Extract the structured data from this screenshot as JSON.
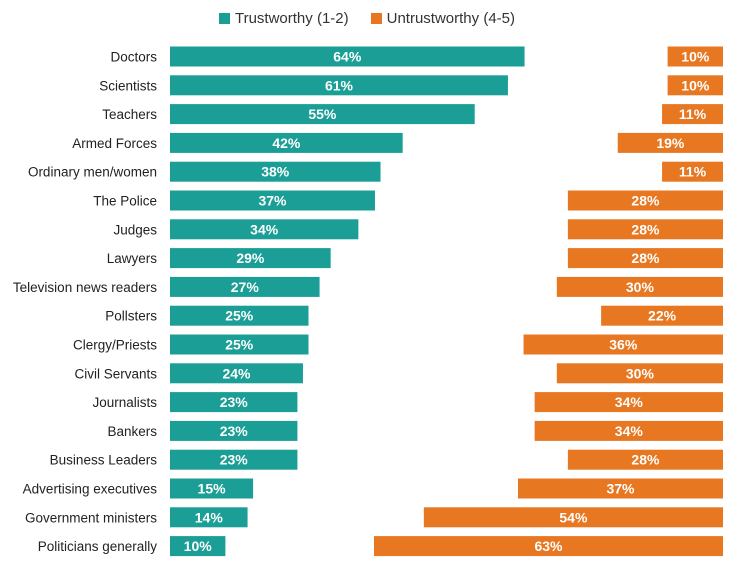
{
  "chart_data": {
    "type": "bar",
    "title": "",
    "xlabel": "",
    "ylabel": "",
    "categories": [
      "Doctors",
      "Scientists",
      "Teachers",
      "Armed Forces",
      "Ordinary men/women",
      "The Police",
      "Judges",
      "Lawyers",
      "Television news readers",
      "Pollsters",
      "Clergy/Priests",
      "Civil Servants",
      "Journalists",
      "Bankers",
      "Business Leaders",
      "Advertising executives",
      "Government ministers",
      "Politicians generally"
    ],
    "series": [
      {
        "name": "Trustworthy (1-2)",
        "color": "#1a9e96",
        "alignment": "left",
        "values": [
          64,
          61,
          55,
          42,
          38,
          37,
          34,
          29,
          27,
          25,
          25,
          24,
          23,
          23,
          23,
          15,
          14,
          10
        ],
        "labels": [
          "64%",
          "61%",
          "55%",
          "42%",
          "38%",
          "37%",
          "34%",
          "29%",
          "27%",
          "25%",
          "25%",
          "24%",
          "23%",
          "23%",
          "23%",
          "15%",
          "14%",
          "10%"
        ]
      },
      {
        "name": "Untrustworthy (4-5)",
        "color": "#e87722",
        "alignment": "right",
        "values": [
          10,
          10,
          11,
          19,
          11,
          28,
          28,
          28,
          30,
          22,
          36,
          30,
          34,
          34,
          28,
          37,
          54,
          63
        ],
        "labels": [
          "10%",
          "10%",
          "11%",
          "19%",
          "11%",
          "28%",
          "28%",
          "28%",
          "30%",
          "22%",
          "36%",
          "30%",
          "34%",
          "34%",
          "28%",
          "37%",
          "54%",
          "63%"
        ]
      }
    ],
    "legend_position": "top-center",
    "grid": false
  }
}
